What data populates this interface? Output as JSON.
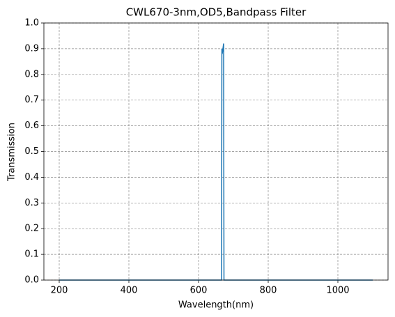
{
  "chart_data": {
    "type": "line",
    "title": "CWL670-3nm,OD5,Bandpass Filter",
    "x_label": "Wavelength(nm)",
    "y_label": "Transmission",
    "x": [
      200,
      666,
      667,
      668,
      669,
      670,
      671,
      672,
      673,
      1100
    ],
    "series": [
      {
        "name": "Transmission",
        "color": "#1f77b4",
        "values": [
          0,
          0,
          0.9,
          0.88,
          0.89,
          0.9,
          0.91,
          0.92,
          0,
          0
        ]
      }
    ],
    "xlim": [
      156,
      1144
    ],
    "xticks": [
      200,
      400,
      600,
      800,
      1000
    ],
    "ylim": [
      0,
      1
    ],
    "yticks": [
      {
        "value": 0,
        "label": "0.0"
      },
      0.1,
      0.2,
      0.3,
      0.4,
      0.5,
      0.6,
      0.7,
      0.8,
      0.9,
      {
        "value": 1,
        "label": "1.0"
      }
    ],
    "grid": true
  }
}
